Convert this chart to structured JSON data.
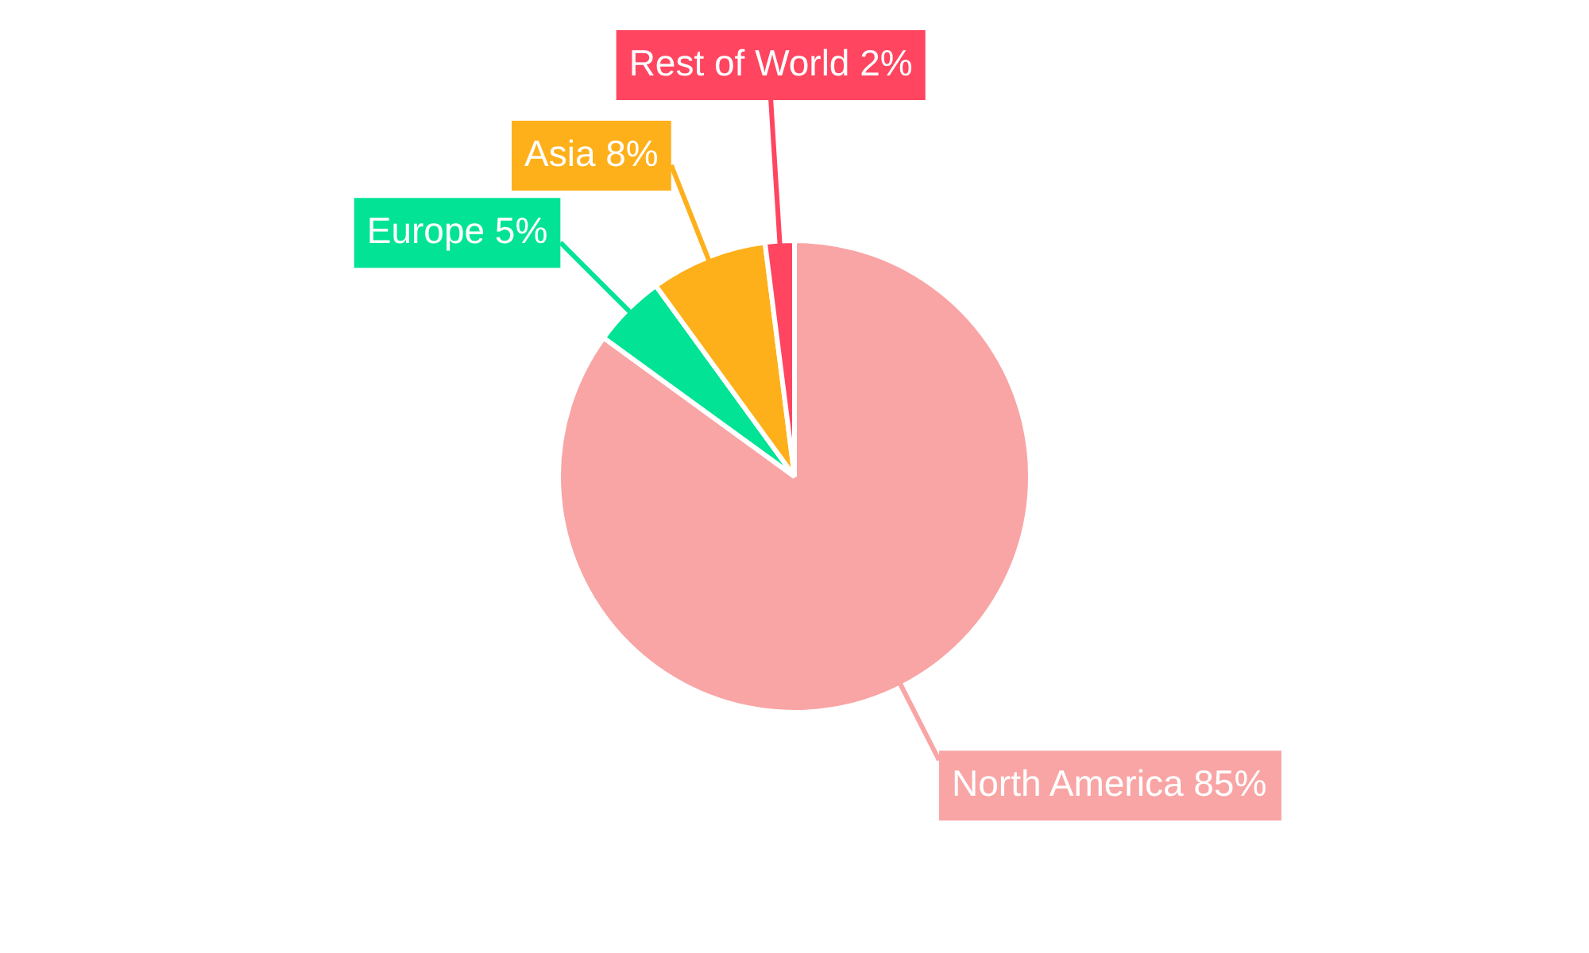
{
  "chart_data": {
    "type": "pie",
    "categories": [
      "North America",
      "Europe",
      "Asia",
      "Rest of World"
    ],
    "values": [
      85,
      5,
      8,
      2
    ],
    "value_labels": [
      "85%",
      "5%",
      "8%",
      "2%"
    ],
    "colors": [
      "#f9a5a5",
      "#03e396",
      "#feb01b",
      "#ff4560"
    ],
    "legend": false
  }
}
